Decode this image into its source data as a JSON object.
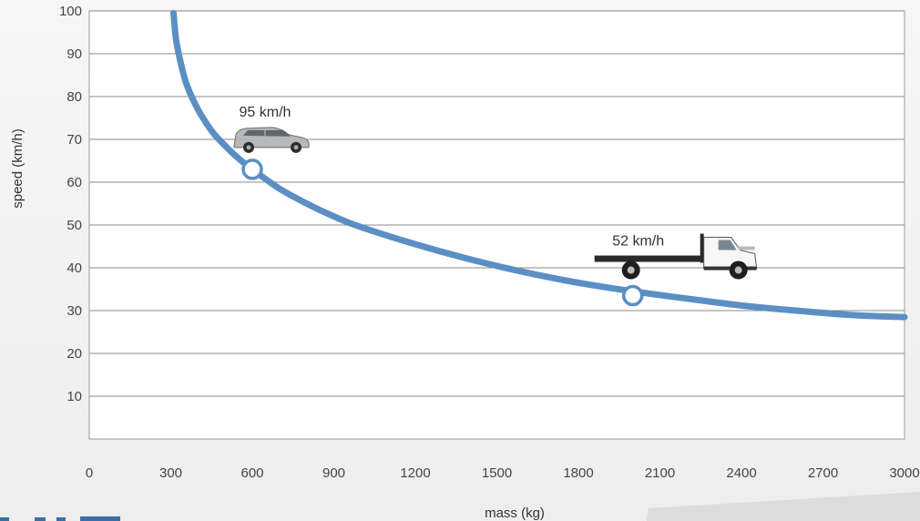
{
  "chart_data": {
    "type": "line",
    "xlabel": "mass (kg)",
    "ylabel": "speed (km/h)",
    "xlim": [
      0,
      3000
    ],
    "ylim": [
      0,
      100
    ],
    "x_ticks": [
      "0",
      "300",
      "600",
      "900",
      "1200",
      "1500",
      "1800",
      "2100",
      "2400",
      "2700",
      "3000"
    ],
    "y_ticks": [
      "10",
      "20",
      "30",
      "40",
      "50",
      "60",
      "70",
      "80",
      "90",
      "100"
    ],
    "grid": "horizontal",
    "series": [
      {
        "color": "#5b8fc4",
        "x": [
          310,
          320,
          340,
          360,
          400,
          450,
          500,
          550,
          600,
          700,
          800,
          900,
          1000,
          1200,
          1400,
          1600,
          1800,
          2000,
          2200,
          2400,
          2600,
          2800,
          3000
        ],
        "y": [
          99.5,
          93,
          87,
          82.5,
          77,
          72,
          68.5,
          65.5,
          63,
          58.5,
          55,
          52,
          49.5,
          45.5,
          42,
          39,
          36.5,
          34.5,
          32.8,
          31.2,
          30,
          29,
          28.5
        ]
      }
    ],
    "markers": [
      {
        "x": 600,
        "y": 63,
        "label": "95 km/h",
        "vehicle": "suv-car"
      },
      {
        "x": 2000,
        "y": 33.5,
        "label": "52 km/h",
        "vehicle": "flatbed-truck"
      }
    ]
  }
}
